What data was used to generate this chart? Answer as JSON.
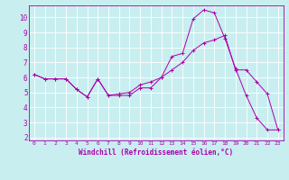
{
  "title": "",
  "xlabel": "Windchill (Refroidissement éolien,°C)",
  "bg_color": "#c8eef0",
  "line_color": "#aa00aa",
  "xlim": [
    -0.5,
    23.5
  ],
  "ylim": [
    1.8,
    10.8
  ],
  "yticks": [
    2,
    3,
    4,
    5,
    6,
    7,
    8,
    9,
    10
  ],
  "xticks": [
    0,
    1,
    2,
    3,
    4,
    5,
    6,
    7,
    8,
    9,
    10,
    11,
    12,
    13,
    14,
    15,
    16,
    17,
    18,
    19,
    20,
    21,
    22,
    23
  ],
  "series": [
    {
      "x": [
        0,
        1,
        2,
        3,
        4,
        5,
        6,
        7,
        8,
        9,
        10,
        11,
        12,
        13,
        14,
        15,
        16,
        17,
        18,
        19,
        20,
        21,
        22,
        23
      ],
      "y": [
        6.2,
        5.9,
        5.9,
        5.9,
        5.2,
        4.7,
        5.9,
        4.8,
        4.8,
        4.8,
        5.3,
        5.3,
        6.0,
        7.4,
        7.6,
        9.9,
        10.5,
        10.3,
        8.6,
        6.6,
        4.8,
        3.3,
        2.5,
        2.5
      ]
    },
    {
      "x": [
        0,
        1,
        2,
        3,
        4,
        5,
        6,
        7,
        8,
        9,
        10,
        11,
        12,
        13,
        14,
        15,
        16,
        17,
        18,
        19,
        20,
        21,
        22,
        23
      ],
      "y": [
        6.2,
        5.9,
        5.9,
        5.9,
        5.2,
        4.7,
        5.9,
        4.8,
        4.9,
        5.0,
        5.5,
        5.7,
        6.0,
        6.5,
        7.0,
        7.8,
        8.3,
        8.5,
        8.8,
        6.5,
        6.5,
        5.7,
        4.9,
        2.5
      ]
    }
  ]
}
